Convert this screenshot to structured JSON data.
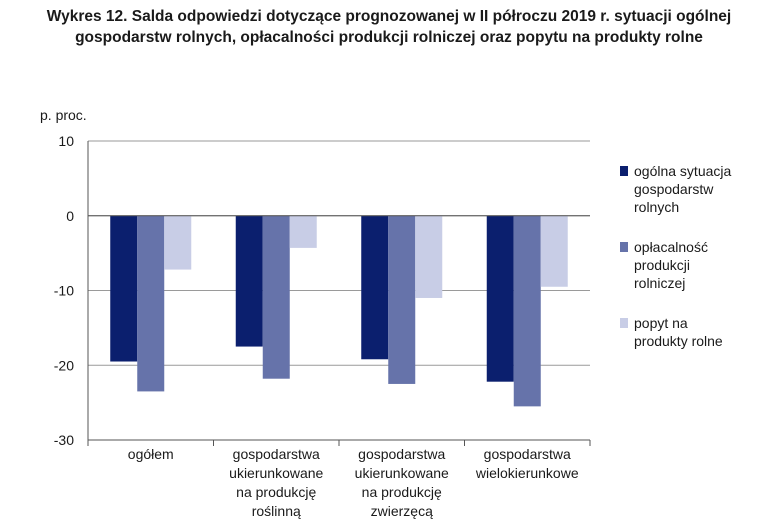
{
  "title": "Wykres 12. Salda odpowiedzi dotyczące prognozowanej w II półroczu 2019 r. sytuacji ogólnej gospodarstw rolnych, opłacalności produkcji rolniczej oraz popytu na produkty rolne",
  "chart_data": {
    "type": "bar",
    "ylabel": "p. proc.",
    "ylim": [
      -30,
      10
    ],
    "yticks": [
      "10",
      "0",
      "-10",
      "-20",
      "-30"
    ],
    "grid": true,
    "legend_position": "right",
    "categories": [
      [
        "ogółem"
      ],
      [
        "gospodarstwa",
        "ukierunkowane",
        "na produkcję",
        "roślinną"
      ],
      [
        "gospodarstwa",
        "ukierunkowane",
        "na produkcję",
        "zwierzęcą"
      ],
      [
        "gospodarstwa",
        "wielokierunkowe"
      ]
    ],
    "series": [
      {
        "name": "ogólna sytuacja gospodarstw rolnych",
        "legend_lines": [
          "ogólna sytuacja",
          "gospodarstw",
          "rolnych"
        ],
        "color": "#0b1f6e",
        "values": [
          -19.5,
          -17.5,
          -19.2,
          -22.2
        ]
      },
      {
        "name": "opłacalność produkcji rolniczej",
        "legend_lines": [
          "opłacalność",
          "produkcji",
          "rolniczej"
        ],
        "color": "#6673aa",
        "values": [
          -23.5,
          -21.8,
          -22.5,
          -25.5
        ]
      },
      {
        "name": "popyt na produkty rolne",
        "legend_lines": [
          "popyt na",
          "produkty rolne"
        ],
        "color": "#c8cde6",
        "values": [
          -7.2,
          -4.3,
          -11.0,
          -9.5
        ]
      }
    ]
  }
}
